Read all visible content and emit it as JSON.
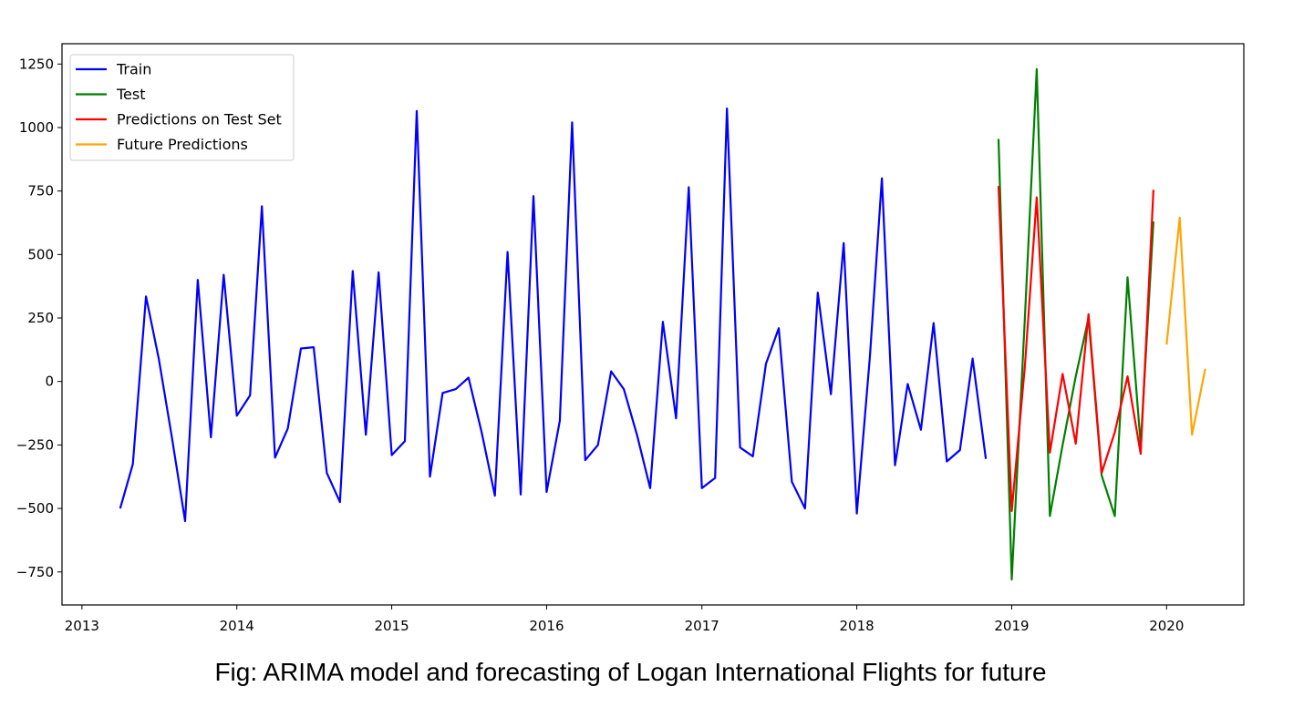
{
  "caption": "Fig: ARIMA model and forecasting of Logan International Flights for future",
  "chart_data": {
    "type": "line",
    "title": "",
    "xlabel": "",
    "ylabel": "",
    "x_axis": "date",
    "xlim": [
      "2012-11-15",
      "2020-07-01"
    ],
    "ylim": [
      -880,
      1330
    ],
    "x_ticks": [
      "2013",
      "2014",
      "2015",
      "2016",
      "2017",
      "2018",
      "2019",
      "2020"
    ],
    "y_ticks": [
      -750,
      -500,
      -250,
      0,
      250,
      500,
      750,
      1000,
      1250
    ],
    "legend_position": "upper-left",
    "grid": false,
    "series": [
      {
        "name": "Train",
        "color": "#0000ff",
        "x": [
          "2013-04",
          "2013-05",
          "2013-06",
          "2013-07",
          "2013-08",
          "2013-09",
          "2013-10",
          "2013-11",
          "2013-12",
          "2014-01",
          "2014-02",
          "2014-03",
          "2014-04",
          "2014-05",
          "2014-06",
          "2014-07",
          "2014-08",
          "2014-09",
          "2014-10",
          "2014-11",
          "2014-12",
          "2015-01",
          "2015-02",
          "2015-03",
          "2015-04",
          "2015-05",
          "2015-06",
          "2015-07",
          "2015-08",
          "2015-09",
          "2015-10",
          "2015-11",
          "2015-12",
          "2016-01",
          "2016-02",
          "2016-03",
          "2016-04",
          "2016-05",
          "2016-06",
          "2016-07",
          "2016-08",
          "2016-09",
          "2016-10",
          "2016-11",
          "2016-12",
          "2017-01",
          "2017-02",
          "2017-03",
          "2017-04",
          "2017-05",
          "2017-06",
          "2017-07",
          "2017-08",
          "2017-09",
          "2017-10",
          "2017-11",
          "2017-12",
          "2018-01",
          "2018-02",
          "2018-03",
          "2018-04",
          "2018-05",
          "2018-06",
          "2018-07",
          "2018-08",
          "2018-09",
          "2018-10",
          "2018-11"
        ],
        "y": [
          -500,
          -325,
          335,
          90,
          -220,
          -550,
          400,
          -220,
          420,
          -135,
          -55,
          690,
          -300,
          -185,
          130,
          135,
          -360,
          -475,
          435,
          -210,
          430,
          -290,
          -235,
          1065,
          -375,
          -45,
          -30,
          15,
          -200,
          -450,
          510,
          -445,
          730,
          -435,
          -155,
          1020,
          -310,
          -250,
          40,
          -30,
          -210,
          -420,
          235,
          -145,
          765,
          -420,
          -380,
          1075,
          -260,
          -295,
          70,
          210,
          -395,
          -500,
          350,
          -50,
          545,
          -520,
          100,
          800,
          -330,
          -10,
          -190,
          230,
          -315,
          -270,
          90,
          -305
        ]
      },
      {
        "name": "Test",
        "color": "#008000",
        "x": [
          "2018-12",
          "2019-01",
          "2019-02",
          "2019-03",
          "2019-04",
          "2019-05",
          "2019-06",
          "2019-07",
          "2019-08",
          "2019-09",
          "2019-10",
          "2019-11",
          "2019-12"
        ],
        "y": [
          955,
          -780,
          250,
          1230,
          -530,
          -250,
          20,
          250,
          -370,
          -530,
          410,
          -250,
          630
        ]
      },
      {
        "name": "Predictions on Test Set",
        "color": "#ff0000",
        "x": [
          "2018-12",
          "2019-01",
          "2019-02",
          "2019-03",
          "2019-04",
          "2019-05",
          "2019-06",
          "2019-07",
          "2019-08",
          "2019-09",
          "2019-10",
          "2019-11",
          "2019-12"
        ],
        "y": [
          770,
          -510,
          60,
          725,
          -280,
          30,
          -245,
          265,
          -360,
          -200,
          20,
          -285,
          755
        ]
      },
      {
        "name": "Future Predictions",
        "color": "#ffa500",
        "x": [
          "2020-01",
          "2020-02",
          "2020-03",
          "2020-04"
        ],
        "y": [
          145,
          645,
          -210,
          50
        ]
      }
    ]
  }
}
